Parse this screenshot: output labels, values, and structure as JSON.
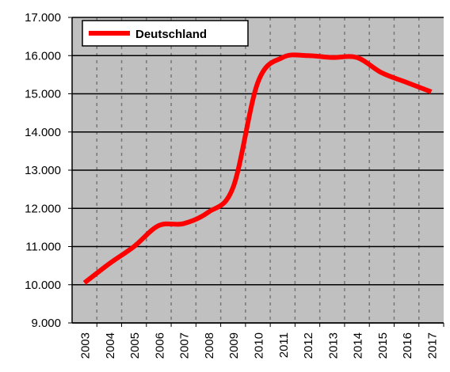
{
  "chart_data": {
    "type": "line",
    "categories": [
      "2003",
      "2004",
      "2005",
      "2006",
      "2007",
      "2008",
      "2009",
      "2010",
      "2011",
      "2012",
      "2013",
      "2014",
      "2015",
      "2016",
      "2017"
    ],
    "series": [
      {
        "name": "Deutschland",
        "color": "#ff0000",
        "values": [
          10050,
          10550,
          11000,
          11550,
          11600,
          11900,
          12550,
          15300,
          15950,
          16000,
          15950,
          15950,
          15550,
          15300,
          15050
        ]
      }
    ],
    "ylim": [
      9000,
      17000
    ],
    "yticks": [
      {
        "value": 9000,
        "label": "9.000"
      },
      {
        "value": 10000,
        "label": "10.000"
      },
      {
        "value": 11000,
        "label": "11.000"
      },
      {
        "value": 12000,
        "label": "12.000"
      },
      {
        "value": 13000,
        "label": "13.000"
      },
      {
        "value": 14000,
        "label": "14.000"
      },
      {
        "value": 15000,
        "label": "15.000"
      },
      {
        "value": 16000,
        "label": "16.000"
      },
      {
        "value": 17000,
        "label": "17.000"
      }
    ],
    "grid": true,
    "legend": "upper left",
    "background": "#c0c0c0"
  }
}
